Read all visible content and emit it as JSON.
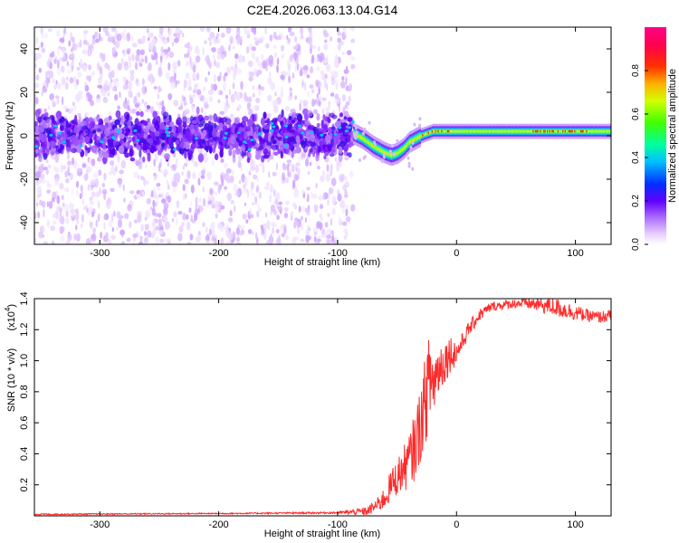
{
  "title": "C2E4.2026.063.13.04.G14",
  "chart_data": [
    {
      "type": "heatmap",
      "name": "spectrogram",
      "xlabel": "Height of straight line (km)",
      "ylabel": "Frequency (Hz)",
      "xlim": [
        -355,
        130
      ],
      "ylim": [
        -50,
        50
      ],
      "xticks": [
        -300,
        -200,
        -100,
        0,
        100
      ],
      "yticks": [
        -40,
        -20,
        0,
        20,
        40
      ],
      "colorbar": {
        "label": "Normalized spectral amplitude",
        "range": [
          0.0,
          1.0
        ],
        "ticks": [
          "0.0",
          "0.2",
          "0.4",
          "0.6",
          "0.8"
        ],
        "tick_values": [
          0.0,
          0.2,
          0.4,
          0.6,
          0.8
        ]
      },
      "noise_region_x": [
        -355,
        -87
      ],
      "noise_band_halfwidth_hz": 8,
      "signal_track": {
        "x": [
          -87,
          -80,
          -70,
          -60,
          -55,
          -50,
          -45,
          -40,
          -30,
          -20,
          -10,
          0,
          20,
          50,
          80,
          100,
          130
        ],
        "freq_hz": [
          1,
          -1,
          -5,
          -8,
          -9,
          -8,
          -6,
          -3,
          0,
          2,
          2,
          2,
          2,
          2,
          2,
          2,
          2
        ]
      }
    },
    {
      "type": "line",
      "name": "snr",
      "xlabel": "Height of straight line (km)",
      "ylabel": "SNR (10 * v/v)",
      "multiplier_label": "(x10",
      "multiplier_exponent": "4",
      "multiplier_close": ")",
      "color": "#ff2a2a",
      "xlim": [
        -355,
        130
      ],
      "ylim": [
        0,
        1.4
      ],
      "xticks": [
        -300,
        -200,
        -100,
        0,
        100
      ],
      "yticks": [
        0.2,
        0.4,
        0.6,
        0.8,
        1.0,
        1.2,
        1.4
      ],
      "series": [
        {
          "name": "SNR",
          "x": [
            -355,
            -200,
            -100,
            -75,
            -65,
            -60,
            -55,
            -50,
            -45,
            -40,
            -35,
            -30,
            -25,
            -22,
            -20,
            -15,
            -10,
            -5,
            0,
            5,
            10,
            20,
            30,
            40,
            50,
            60,
            70,
            80,
            90,
            100,
            110,
            120,
            130
          ],
          "y": [
            0.01,
            0.015,
            0.02,
            0.03,
            0.08,
            0.12,
            0.2,
            0.25,
            0.3,
            0.35,
            0.45,
            0.6,
            0.8,
            0.9,
            0.85,
            0.95,
            1.0,
            1.05,
            1.05,
            1.12,
            1.2,
            1.3,
            1.35,
            1.36,
            1.37,
            1.37,
            1.36,
            1.35,
            1.33,
            1.31,
            1.29,
            1.28,
            1.29
          ],
          "noise": [
            0.004,
            0.004,
            0.006,
            0.03,
            0.05,
            0.08,
            0.1,
            0.12,
            0.14,
            0.18,
            0.22,
            0.25,
            0.3,
            0.3,
            0.25,
            0.18,
            0.15,
            0.12,
            0.08,
            0.06,
            0.05,
            0.04,
            0.03,
            0.03,
            0.03,
            0.04,
            0.05,
            0.06,
            0.06,
            0.05,
            0.04,
            0.04,
            0.04
          ]
        }
      ]
    }
  ]
}
